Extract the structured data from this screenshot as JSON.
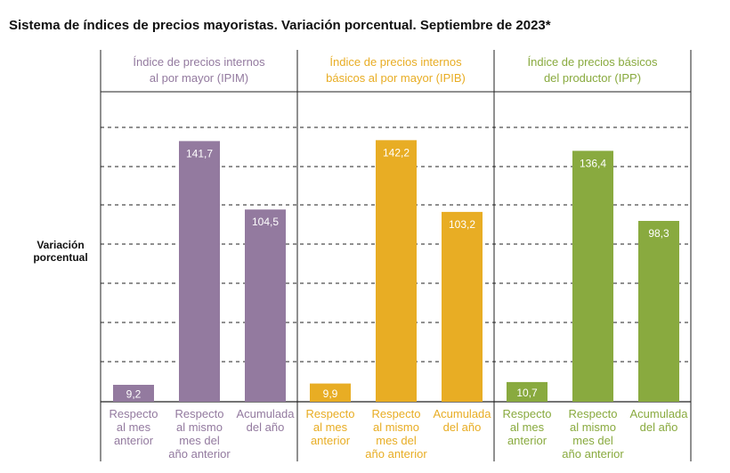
{
  "chart_data": {
    "type": "bar",
    "title": "Sistema de índices de precios mayoristas. Variación porcentual. Septiembre de 2023*",
    "ylabel": "Variación porcentual",
    "ylim": [
      0,
      160
    ],
    "grid": true,
    "categories": [
      "Respecto al mes anterior",
      "Respecto al mismo mes del año anterior",
      "Acumulada del año"
    ],
    "category_lines": [
      [
        "Respecto",
        "al mes",
        "anterior"
      ],
      [
        "Respecto",
        "al mismo",
        "mes del",
        "año anterior"
      ],
      [
        "Acumulada",
        "del año"
      ]
    ],
    "groups": [
      {
        "title_lines": [
          "Índice de precios internos",
          "al por mayor (IPIM)"
        ],
        "color": "#937a9f",
        "values": [
          9.2,
          141.7,
          104.5
        ],
        "labels": [
          "9,2",
          "141,7",
          "104,5"
        ]
      },
      {
        "title_lines": [
          "Índice de precios internos",
          "básicos al por mayor (IPIB)"
        ],
        "color": "#e8ad24",
        "values": [
          9.9,
          142.2,
          103.2
        ],
        "labels": [
          "9,9",
          "142,2",
          "103,2"
        ]
      },
      {
        "title_lines": [
          "Índice de precios básicos",
          "del productor (IPP)"
        ],
        "color": "#89aa3f",
        "values": [
          10.7,
          136.4,
          98.3
        ],
        "labels": [
          "10,7",
          "136,4",
          "98,3"
        ]
      }
    ]
  }
}
